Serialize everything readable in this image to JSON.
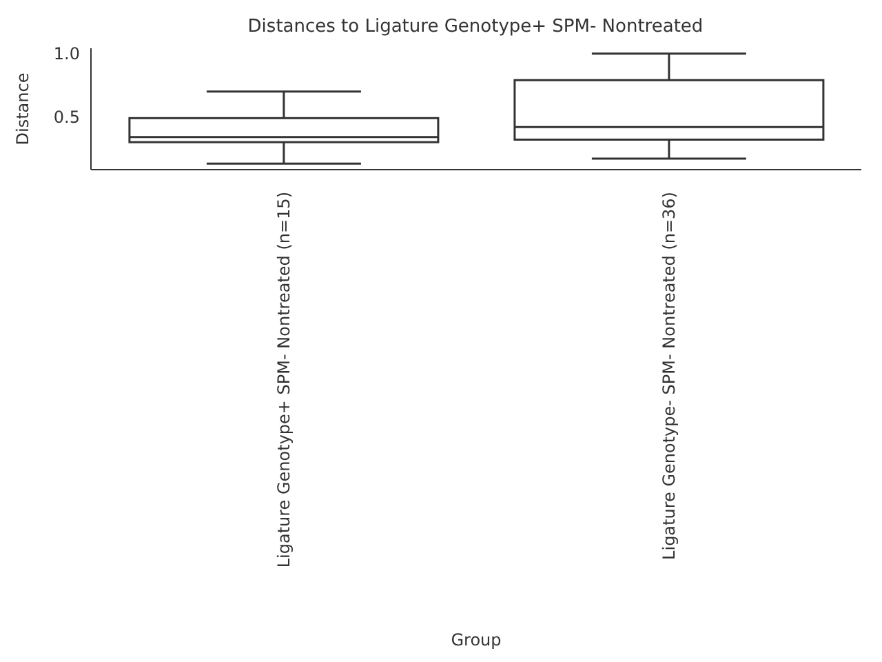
{
  "chart_data": {
    "type": "box",
    "title": "Distances to Ligature Genotype+ SPM- Nontreated",
    "xlabel": "Group",
    "ylabel": "Distance",
    "categories": [
      "Ligature Genotype+ SPM- Nontreated (n=15)",
      "Ligature Genotype- SPM- Nontreated (n=36)"
    ],
    "boxes": [
      {
        "low": 0.13,
        "q1": 0.3,
        "median": 0.34,
        "q3": 0.49,
        "high": 0.7
      },
      {
        "low": 0.17,
        "q1": 0.32,
        "median": 0.42,
        "q3": 0.79,
        "high": 1.0
      }
    ],
    "color": "#ffffff",
    "ylim": [
      0.083,
      1.042
    ],
    "yticks": [
      {
        "value": 0.5,
        "label": "0.5"
      },
      {
        "value": 1,
        "label": "1.0"
      }
    ],
    "grid": false
  }
}
